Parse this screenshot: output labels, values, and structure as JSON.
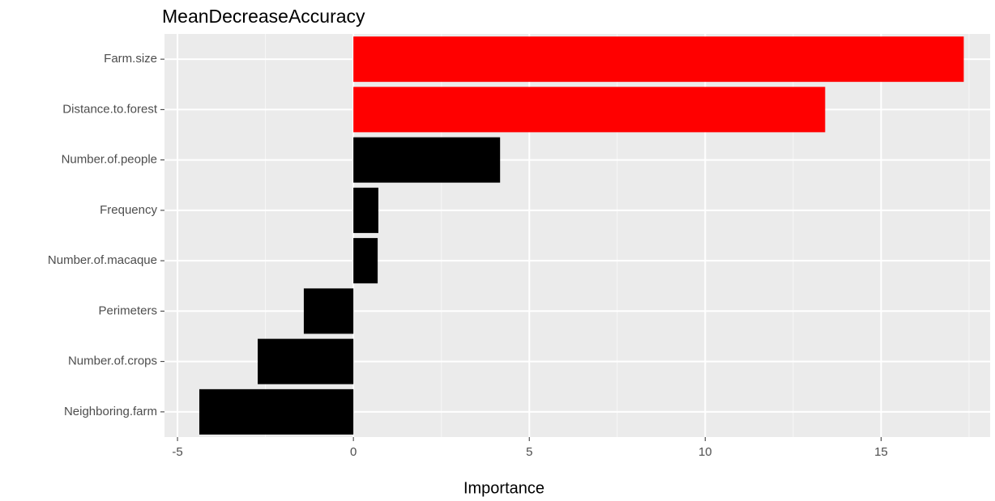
{
  "chart_data": {
    "type": "barh",
    "title": "MeanDecreaseAccuracy",
    "x_label": "Importance",
    "categories": [
      "Farm.size",
      "Distance.to.forest",
      "Number.of.people",
      "Frequency",
      "Number.of.macaque",
      "Perimeters",
      "Number.of.crops",
      "Neighboring.farm"
    ],
    "values": [
      17.35,
      13.41,
      4.17,
      0.71,
      0.69,
      -1.41,
      -2.72,
      -4.38
    ],
    "colors": [
      "#ff0000",
      "#ff0000",
      "#000000",
      "#000000",
      "#000000",
      "#000000",
      "#000000",
      "#000000"
    ],
    "xlim": [
      -5.37,
      18.1
    ],
    "xticks": [
      -5,
      0,
      5,
      10,
      15
    ],
    "x_minor_ticks": [
      -2.5,
      2.5,
      7.5,
      12.5,
      17.5
    ],
    "grid": true
  }
}
